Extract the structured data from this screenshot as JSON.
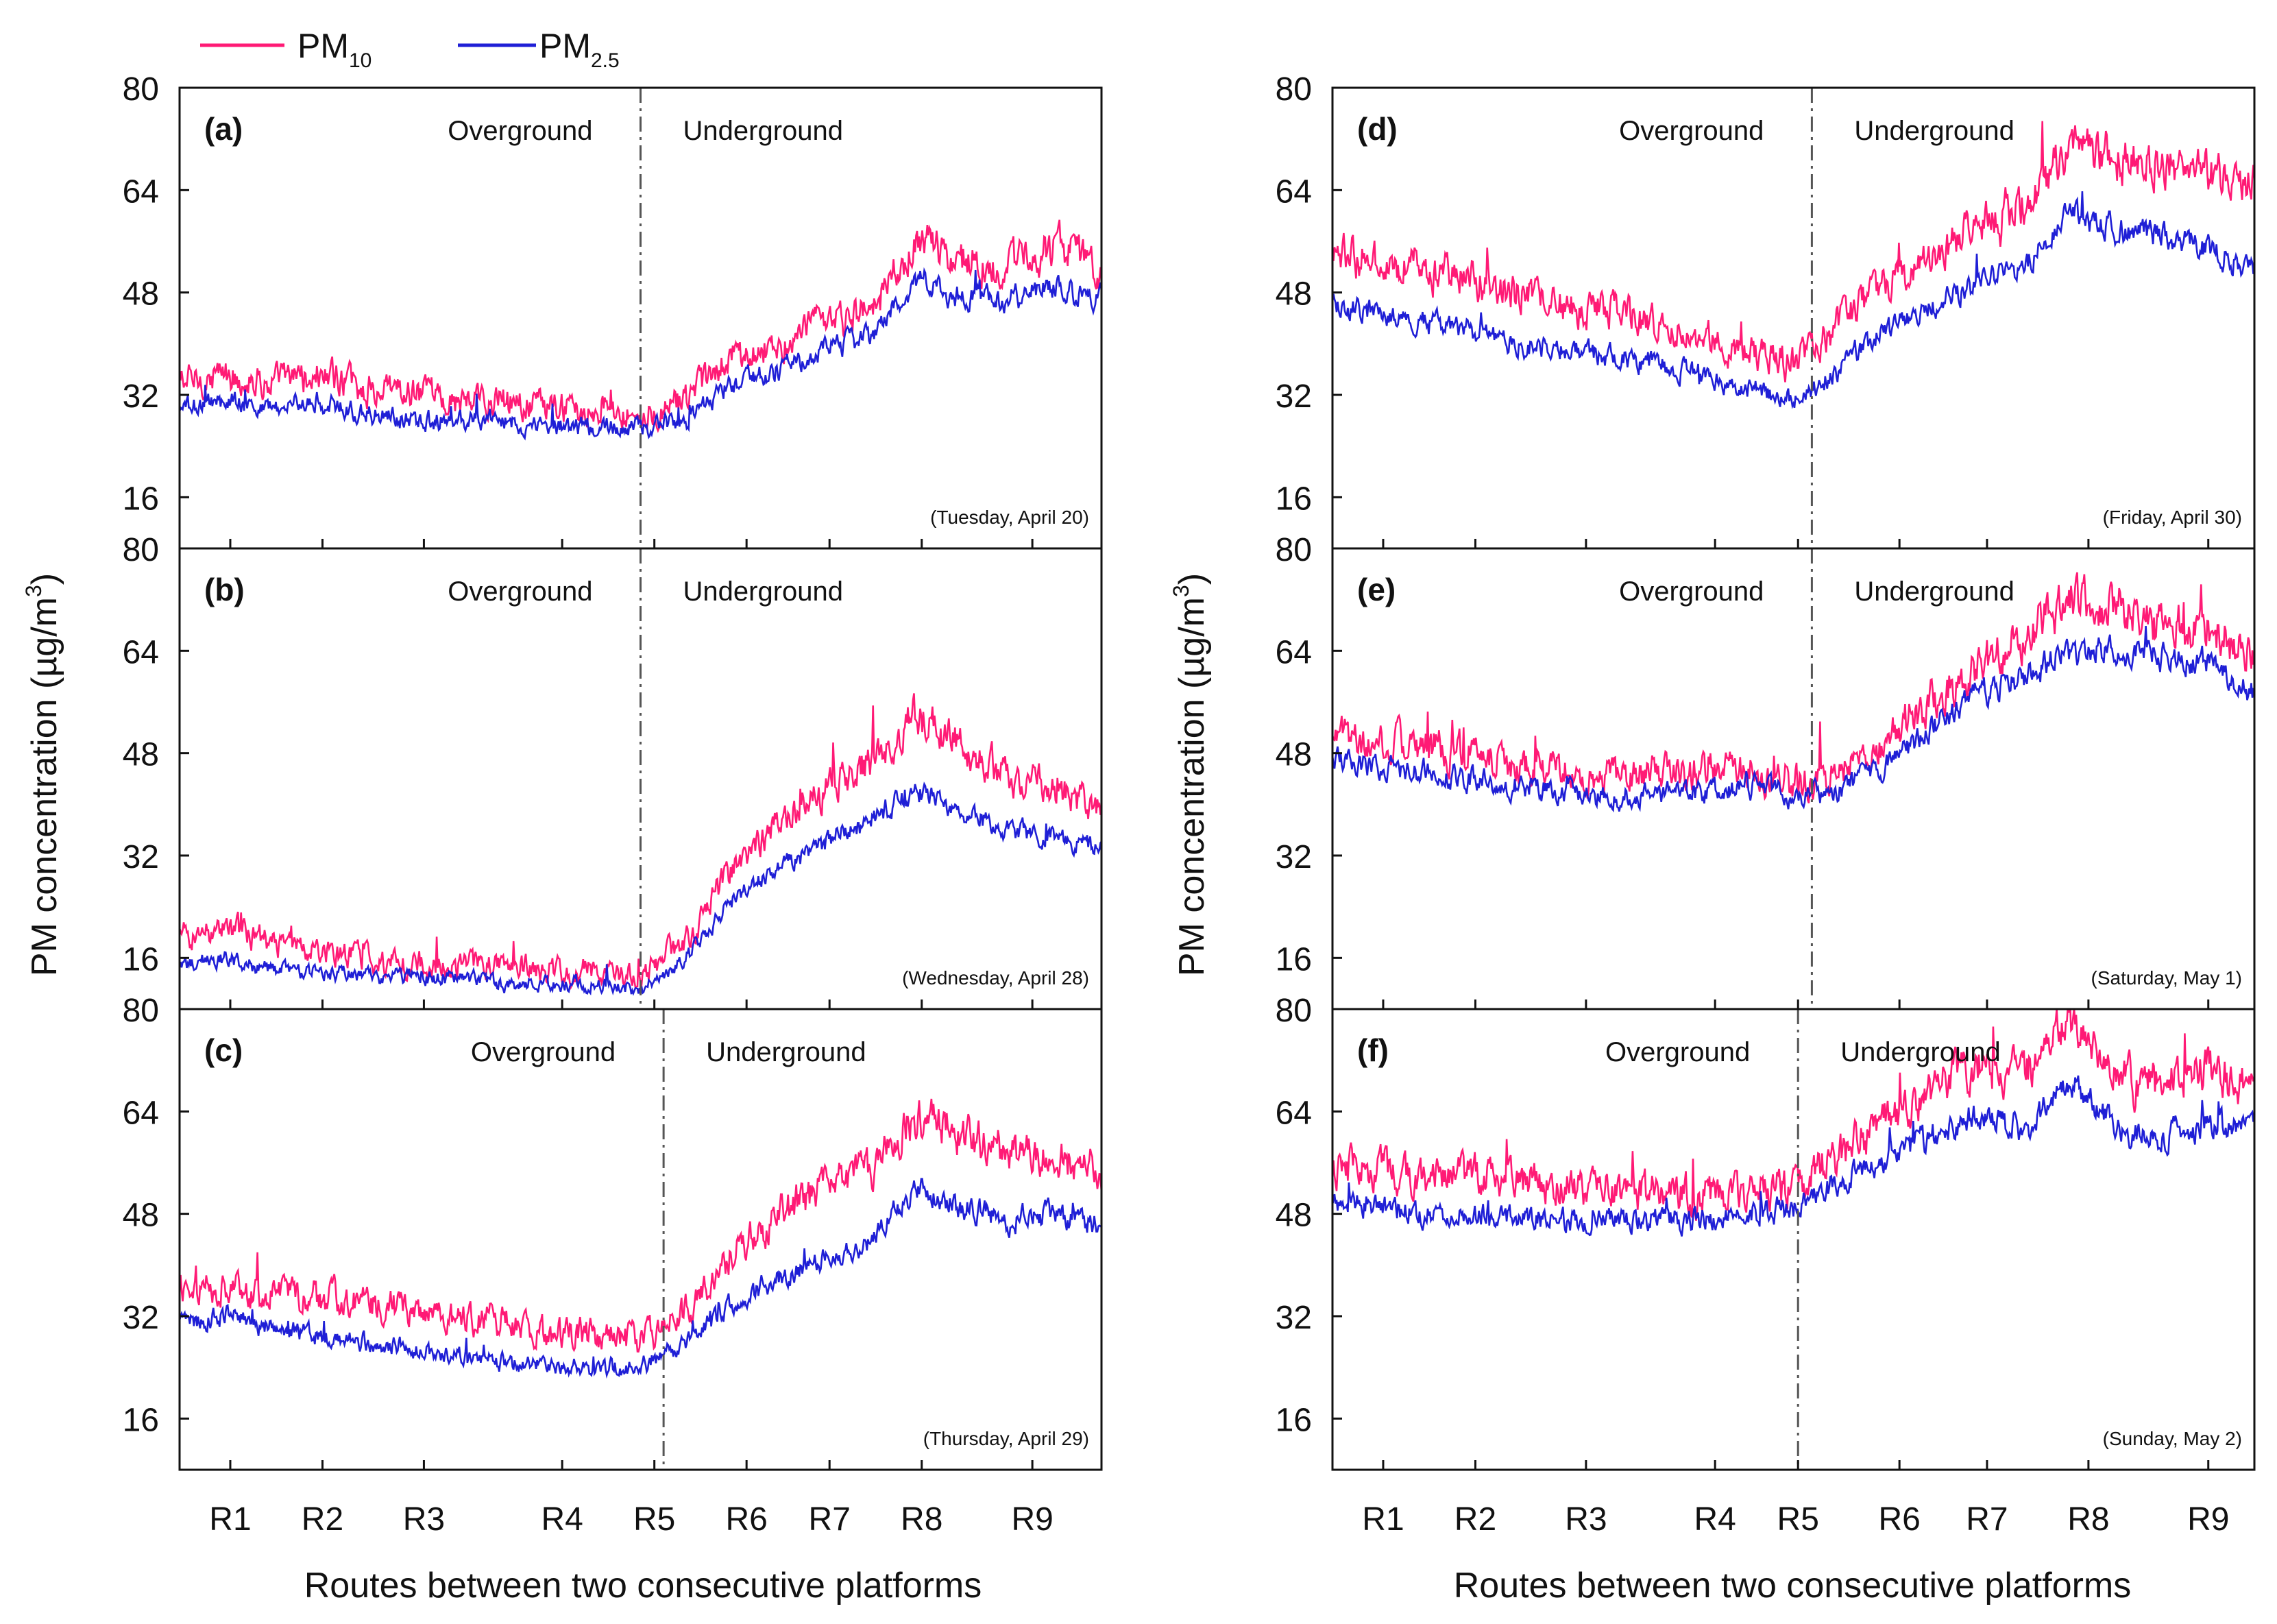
{
  "legend": [
    {
      "label": "PM",
      "subscript": "10",
      "color": "#ff1a75"
    },
    {
      "label": "PM",
      "subscript": "2.5",
      "color": "#1f1fd6"
    }
  ],
  "y_axis_label": "PM concentration (µg/m",
  "y_axis_label_sup": "3",
  "y_axis_label_end": ")",
  "x_axis_label": "Routes between two consecutive platforms",
  "routes": [
    "R1",
    "R2",
    "R3",
    "R4",
    "R5",
    "R6",
    "R7",
    "R8",
    "R9"
  ],
  "colors": {
    "pm10": "#ff1a75",
    "pm25": "#1f1fd6",
    "axis": "#111111",
    "divider": "#555555"
  },
  "chart_data": [
    {
      "id": "a",
      "type": "line",
      "panel_label": "(a)",
      "date": "(Tuesday, April 20)",
      "region_left": "Overground",
      "region_right": "Underground",
      "ylim": [
        8,
        80
      ],
      "yticks": [
        16,
        32,
        48,
        64,
        80
      ],
      "xlim": [
        0,
        10
      ],
      "route_positions": [
        0.55,
        1.55,
        2.65,
        4.15,
        5.15,
        6.15,
        7.05,
        8.05,
        9.25
      ],
      "divider_x": 5.0,
      "series": [
        {
          "name": "PM10",
          "x": [
            0,
            0.5,
            1,
            1.5,
            2,
            2.5,
            3,
            3.5,
            4,
            4.5,
            5,
            5.5,
            6,
            6.5,
            7,
            7.5,
            8,
            8.5,
            9,
            9.5,
            10
          ],
          "values": [
            34,
            35,
            34,
            35,
            33,
            32,
            31,
            31,
            30,
            30,
            29,
            31,
            38,
            40,
            43,
            45,
            56,
            53,
            52,
            55,
            52
          ]
        },
        {
          "name": "PM2.5",
          "x": [
            0,
            0.5,
            1,
            1.5,
            2,
            2.5,
            3,
            3.5,
            4,
            4.5,
            5,
            5.5,
            6,
            6.5,
            7,
            7.5,
            8,
            8.5,
            9,
            9.5,
            10
          ],
          "values": [
            30,
            31,
            30,
            31,
            29,
            28,
            28,
            28,
            27,
            27,
            27,
            28,
            34,
            36,
            39,
            41,
            50,
            47,
            47,
            49,
            47
          ]
        }
      ]
    },
    {
      "id": "b",
      "type": "line",
      "panel_label": "(b)",
      "date": "(Wednesday, April 28)",
      "region_left": "Overground",
      "region_right": "Underground",
      "ylim": [
        8,
        80
      ],
      "yticks": [
        16,
        32,
        48,
        64,
        80
      ],
      "xlim": [
        0,
        10
      ],
      "route_positions": [
        0.55,
        1.55,
        2.65,
        4.15,
        5.15,
        6.15,
        7.05,
        8.05,
        9.25
      ],
      "divider_x": 5.0,
      "series": [
        {
          "name": "PM10",
          "x": [
            0,
            0.5,
            1,
            1.5,
            2,
            2.5,
            3,
            3.5,
            4,
            4.5,
            5,
            5.5,
            6,
            6.5,
            7,
            7.5,
            8,
            8.5,
            9,
            9.5,
            10
          ],
          "values": [
            19,
            21,
            18,
            17,
            16,
            15,
            15,
            15,
            14,
            14,
            13,
            19,
            30,
            37,
            42,
            47,
            54,
            49,
            44,
            43,
            39
          ]
        },
        {
          "name": "PM2.5",
          "x": [
            0,
            0.5,
            1,
            1.5,
            2,
            2.5,
            3,
            3.5,
            4,
            4.5,
            5,
            5.5,
            6,
            6.5,
            7,
            7.5,
            8,
            8.5,
            9,
            9.5,
            10
          ],
          "values": [
            15,
            16,
            14,
            14,
            13,
            13,
            13,
            12,
            12,
            12,
            11,
            16,
            25,
            30,
            34,
            38,
            42,
            39,
            36,
            35,
            33
          ]
        }
      ]
    },
    {
      "id": "c",
      "type": "line",
      "panel_label": "(c)",
      "date": "(Thursday, April 29)",
      "region_left": "Overground",
      "region_right": "Underground",
      "ylim": [
        8,
        80
      ],
      "yticks": [
        16,
        32,
        48,
        64,
        80
      ],
      "xlim": [
        0,
        10
      ],
      "route_positions": [
        0.55,
        1.55,
        2.65,
        4.15,
        5.15,
        6.15,
        7.05,
        8.05,
        9.25
      ],
      "divider_x": 5.25,
      "series": [
        {
          "name": "PM10",
          "x": [
            0,
            0.5,
            1,
            1.5,
            2,
            2.5,
            3,
            3.5,
            4,
            4.5,
            5,
            5.5,
            6,
            6.5,
            7,
            7.5,
            8,
            8.5,
            9,
            9.5,
            10
          ],
          "values": [
            36,
            37,
            35,
            35,
            34,
            33,
            32,
            31,
            29,
            29,
            28,
            33,
            42,
            48,
            52,
            55,
            63,
            60,
            58,
            57,
            54
          ]
        },
        {
          "name": "PM2.5",
          "x": [
            0,
            0.5,
            1,
            1.5,
            2,
            2.5,
            3,
            3.5,
            4,
            4.5,
            5,
            5.5,
            6,
            6.5,
            7,
            7.5,
            8,
            8.5,
            9,
            9.5,
            10
          ],
          "values": [
            31,
            32,
            30,
            29,
            28,
            27,
            26,
            25,
            24,
            24,
            24,
            28,
            34,
            38,
            41,
            44,
            52,
            49,
            47,
            48,
            46
          ]
        }
      ]
    },
    {
      "id": "d",
      "type": "line",
      "panel_label": "(d)",
      "date": "(Friday, April 30)",
      "region_left": "Overground",
      "region_right": "Underground",
      "ylim": [
        8,
        80
      ],
      "yticks": [
        16,
        32,
        48,
        64,
        80
      ],
      "xlim": [
        0,
        10
      ],
      "route_positions": [
        0.55,
        1.55,
        2.75,
        4.15,
        5.05,
        6.15,
        7.1,
        8.2,
        9.5
      ],
      "divider_x": 5.2,
      "series": [
        {
          "name": "PM10",
          "x": [
            0,
            0.5,
            1,
            1.5,
            2,
            2.5,
            3,
            3.5,
            4,
            4.5,
            5,
            5.5,
            6,
            6.5,
            7,
            7.5,
            8,
            8.5,
            9,
            9.5,
            10
          ],
          "values": [
            54,
            53,
            51,
            50,
            48,
            46,
            45,
            43,
            41,
            39,
            37,
            43,
            49,
            54,
            58,
            62,
            71,
            69,
            68,
            67,
            65
          ]
        },
        {
          "name": "PM2.5",
          "x": [
            0,
            0.5,
            1,
            1.5,
            2,
            2.5,
            3,
            3.5,
            4,
            4.5,
            5,
            5.5,
            6,
            6.5,
            7,
            7.5,
            8,
            8.5,
            9,
            9.5,
            10
          ],
          "values": [
            46,
            45,
            43,
            42,
            40,
            39,
            38,
            37,
            35,
            33,
            31,
            36,
            42,
            46,
            49,
            52,
            60,
            58,
            57,
            55,
            51
          ]
        }
      ]
    },
    {
      "id": "e",
      "type": "line",
      "panel_label": "(e)",
      "date": "(Saturday, May 1)",
      "region_left": "Overground",
      "region_right": "Underground",
      "ylim": [
        8,
        80
      ],
      "yticks": [
        16,
        32,
        48,
        64,
        80
      ],
      "xlim": [
        0,
        10
      ],
      "route_positions": [
        0.55,
        1.55,
        2.75,
        4.15,
        5.05,
        6.15,
        7.1,
        8.2,
        9.5
      ],
      "divider_x": 5.2,
      "series": [
        {
          "name": "PM10",
          "x": [
            0,
            0.5,
            1,
            1.5,
            2,
            2.5,
            3,
            3.5,
            4,
            4.5,
            5,
            5.5,
            6,
            6.5,
            7,
            7.5,
            8,
            8.5,
            9,
            9.5,
            10
          ],
          "values": [
            50,
            50,
            49,
            48,
            46,
            45,
            44,
            45,
            45,
            46,
            43,
            45,
            50,
            56,
            62,
            66,
            72,
            71,
            68,
            68,
            63
          ]
        },
        {
          "name": "PM2.5",
          "x": [
            0,
            0.5,
            1,
            1.5,
            2,
            2.5,
            3,
            3.5,
            4,
            4.5,
            5,
            5.5,
            6,
            6.5,
            7,
            7.5,
            8,
            8.5,
            9,
            9.5,
            10
          ],
          "values": [
            47,
            46,
            45,
            44,
            43,
            42,
            41,
            42,
            42,
            43,
            41,
            42,
            46,
            52,
            57,
            60,
            64,
            64,
            63,
            62,
            57
          ]
        }
      ]
    },
    {
      "id": "f",
      "type": "line",
      "panel_label": "(f)",
      "date": "(Sunday, May 2)",
      "region_left": "Overground",
      "region_right": "Underground",
      "ylim": [
        8,
        80
      ],
      "yticks": [
        16,
        32,
        48,
        64,
        80
      ],
      "xlim": [
        0,
        10
      ],
      "route_positions": [
        0.55,
        1.55,
        2.75,
        4.15,
        5.05,
        6.15,
        7.1,
        8.2,
        9.5
      ],
      "divider_x": 5.05,
      "series": [
        {
          "name": "PM10",
          "x": [
            0,
            0.5,
            1,
            1.5,
            2,
            2.5,
            3,
            3.5,
            4,
            4.5,
            5,
            5.5,
            6,
            6.5,
            7,
            7.5,
            8,
            8.5,
            9,
            9.5,
            10
          ],
          "values": [
            55,
            55,
            54,
            54,
            53,
            52,
            51,
            51,
            51,
            51,
            52,
            57,
            63,
            67,
            71,
            70,
            78,
            69,
            68,
            71,
            67
          ]
        },
        {
          "name": "PM2.5",
          "x": [
            0,
            0.5,
            1,
            1.5,
            2,
            2.5,
            3,
            3.5,
            4,
            4.5,
            5,
            5.5,
            6,
            6.5,
            7,
            7.5,
            8,
            8.5,
            9,
            9.5,
            10
          ],
          "values": [
            50,
            49,
            48,
            48,
            47,
            47,
            47,
            47,
            47,
            48,
            49,
            53,
            57,
            60,
            64,
            61,
            69,
            61,
            60,
            62,
            61
          ]
        }
      ]
    }
  ]
}
